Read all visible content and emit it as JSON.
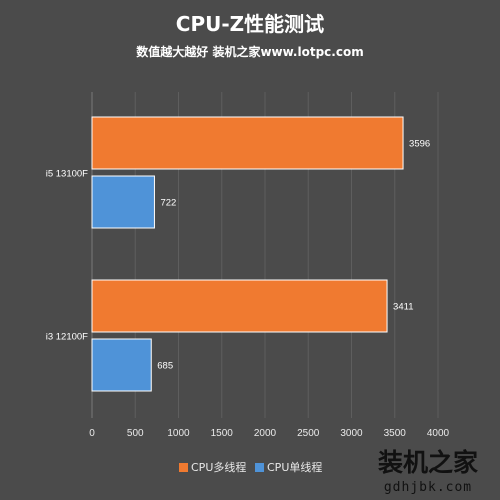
{
  "chart_data": {
    "type": "bar",
    "orientation": "horizontal",
    "title": "CPU-Z性能测试",
    "subtitle": "数值越大越好 装机之家www.lotpc.com",
    "categories": [
      "i5 13100F",
      "i3 12100F"
    ],
    "series": [
      {
        "name": "CPU多线程",
        "color": "#f07a30",
        "values": [
          3596,
          3411
        ]
      },
      {
        "name": "CPU单线程",
        "color": "#4f93d8",
        "values": [
          722,
          685
        ]
      }
    ],
    "xlim": [
      0,
      4000
    ],
    "xticks": [
      0,
      500,
      1000,
      1500,
      2000,
      2500,
      3000,
      3500,
      4000
    ],
    "grid": true,
    "legend_position": "bottom"
  },
  "watermark": {
    "text": "装机之家",
    "url": "gdhjbk.com"
  }
}
